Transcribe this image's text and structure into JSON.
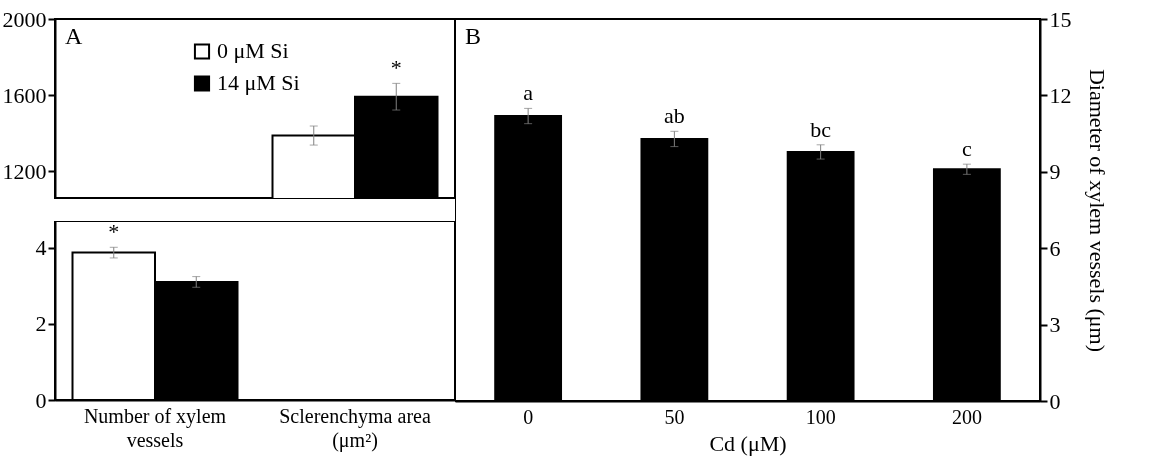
{
  "chart_data": [
    {
      "type": "bar",
      "categories": [
        "Number of xylem vessels",
        "Sclerenchyma area (μm²)"
      ],
      "series": [
        {
          "name": "0 μM Si",
          "color": "#ffffff",
          "values": [
            null,
            1388
          ],
          "errors": [
            null,
            50
          ]
        },
        {
          "name": "14 μM Si",
          "color": "#000000",
          "values": [
            null,
            1592
          ],
          "errors": [
            null,
            70
          ]
        }
      ],
      "ylim": [
        1060,
        2000
      ],
      "yticks": [
        1200,
        1600,
        2000
      ],
      "tick_labels": "y",
      "legend": "top left",
      "annotations": [
        "A",
        {
          "text": "*",
          "x": "Sclerenchyma area (μm²)",
          "y": 1592
        }
      ]
    },
    {
      "type": "bar",
      "categories": [
        "Number of xylem vessels",
        "Sclerenchyma area (μm²)"
      ],
      "series": [
        {
          "color": "#ffffff",
          "values": [
            3.87,
            null
          ],
          "errors": [
            0.14,
            null
          ]
        },
        {
          "color": "#000000",
          "values": [
            3.1,
            null
          ],
          "errors": [
            0.14,
            null
          ]
        }
      ],
      "ylim": [
        0,
        4.7
      ],
      "yticks": [
        0,
        2,
        4
      ],
      "annotations": [
        {
          "text": "*",
          "x": "Number of xylem vessels",
          "y": 3.87
        }
      ]
    },
    {
      "type": "bar",
      "categories": [
        "0",
        "50",
        "100",
        "200"
      ],
      "xlabel": "Cd (μM)",
      "ylabel": "Diameter of xylem vessels (μm)",
      "series": [
        {
          "color": "#000000",
          "values": [
            11.19,
            10.29,
            9.78,
            9.1
          ],
          "errors": [
            0.3,
            0.3,
            0.28,
            0.2
          ]
        }
      ],
      "ylim": [
        0,
        15
      ],
      "yticks": [
        0,
        3,
        6,
        9,
        12,
        15
      ],
      "annotations": [
        "B",
        {
          "text": "a",
          "x": "0",
          "y": 11.19
        },
        {
          "text": "ab",
          "x": "50",
          "y": 10.29
        },
        {
          "text": "bc",
          "x": "100",
          "y": 9.78
        },
        {
          "text": "c",
          "x": "200",
          "y": 9.1
        }
      ]
    }
  ]
}
